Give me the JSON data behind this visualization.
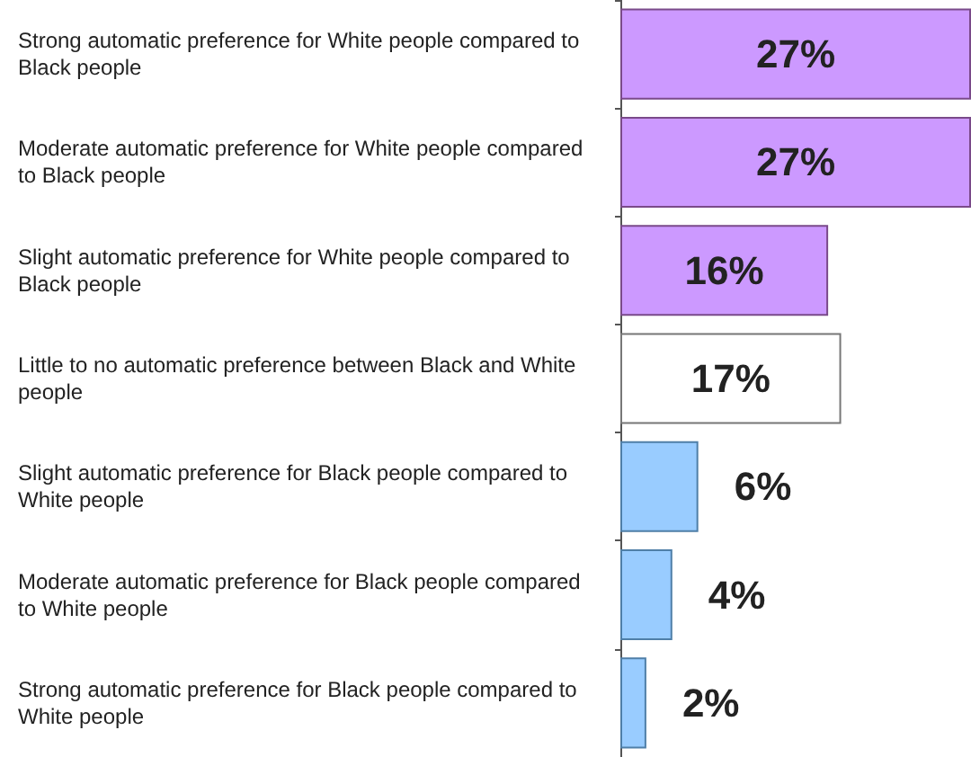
{
  "chart_data": {
    "type": "bar",
    "orientation": "horizontal",
    "value_labels": [
      "27%",
      "27%",
      "16%",
      "17%",
      "6%",
      "4%",
      "2%"
    ],
    "categories": [
      "Strong automatic preference for White people compared to Black people",
      "Moderate automatic preference for White people compared to Black people",
      "Slight automatic preference for White people compared to Black people",
      "Little to no automatic preference between Black and White people",
      "Slight automatic preference for Black people compared to White people",
      "Moderate automatic preference for Black people compared to White people",
      "Strong automatic preference for Black people compared to White people"
    ],
    "values": [
      27,
      27,
      16,
      17,
      6,
      4,
      2
    ],
    "colors": [
      "#cc99ff",
      "#cc99ff",
      "#cc99ff",
      "#ffffff",
      "#99ccff",
      "#99ccff",
      "#99ccff"
    ]
  }
}
